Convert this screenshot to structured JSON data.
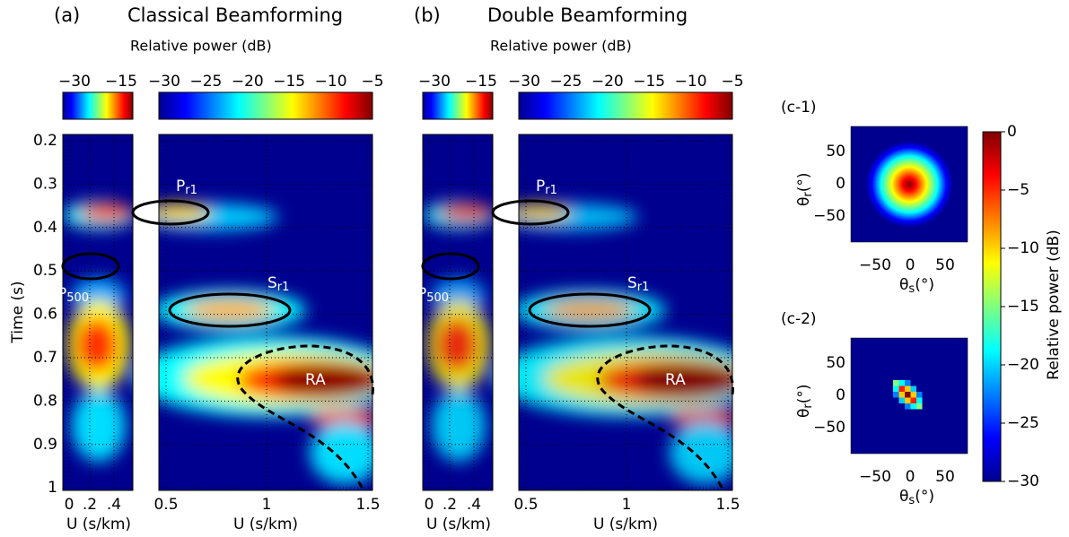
{
  "panels": [
    {
      "label": "(a)",
      "title": "Classical Beamforming",
      "colorbar_title": "Relative power (dB)",
      "colorbar_left_ticks": [
        "−30",
        "−15"
      ],
      "colorbar_right_ticks": [
        "−30",
        "−25",
        "−20",
        "−15",
        "−10",
        "−5"
      ],
      "x_left_ticks": [
        "0",
        ".2",
        ".4"
      ],
      "x_right_ticks": [
        "0.5",
        "1",
        "1.5"
      ],
      "x_left_label": "U (s/km)",
      "x_right_label": "U (s/km)",
      "annotations": [
        {
          "main": "P",
          "sub": "r1"
        },
        {
          "main": "P",
          "sub": "500"
        },
        {
          "main": "S",
          "sub": "r1"
        },
        {
          "main": "RA",
          "sub": ""
        }
      ]
    },
    {
      "label": "(b)",
      "title": "Double Beamforming",
      "colorbar_title": "Relative power (dB)",
      "colorbar_left_ticks": [
        "−30",
        "−15"
      ],
      "colorbar_right_ticks": [
        "−30",
        "−25",
        "−20",
        "−15",
        "−10",
        "−5"
      ],
      "x_left_ticks": [
        "0",
        ".2",
        ".4"
      ],
      "x_right_ticks": [
        "0.5",
        "1",
        "1.5"
      ],
      "x_left_label": "U (s/km)",
      "x_right_label": "U (s/km)",
      "annotations": [
        {
          "main": "P",
          "sub": "r1"
        },
        {
          "main": "P",
          "sub": "500"
        },
        {
          "main": "S",
          "sub": "r1"
        },
        {
          "main": "RA",
          "sub": ""
        }
      ]
    }
  ],
  "time_axis": {
    "label": "Time (s)",
    "ticks": [
      "0.2",
      "0.3",
      "0.4",
      "0.5",
      "0.6",
      "0.7",
      "0.8",
      "0.9",
      "1"
    ]
  },
  "insets": [
    {
      "label": "(c-1)",
      "y_ticks": [
        "50",
        "0",
        "−50"
      ],
      "x_ticks": [
        "−50",
        "0",
        "50"
      ],
      "y_label": {
        "main": "θ",
        "sub": "r",
        "unit": "(°)"
      },
      "x_label": {
        "main": "θ",
        "sub": "s",
        "unit": "(°)"
      }
    },
    {
      "label": "(c-2)",
      "y_ticks": [
        "50",
        "0",
        "−50"
      ],
      "x_ticks": [
        "−50",
        "0",
        "50"
      ],
      "y_label": {
        "main": "θ",
        "sub": "r",
        "unit": "(°)"
      },
      "x_label": {
        "main": "θ",
        "sub": "s",
        "unit": "(°)"
      }
    }
  ],
  "colorbar": {
    "label": "Relative power (dB)",
    "ticks": [
      "0",
      "−5",
      "−10",
      "−15",
      "−20",
      "−25",
      "−30"
    ]
  }
}
